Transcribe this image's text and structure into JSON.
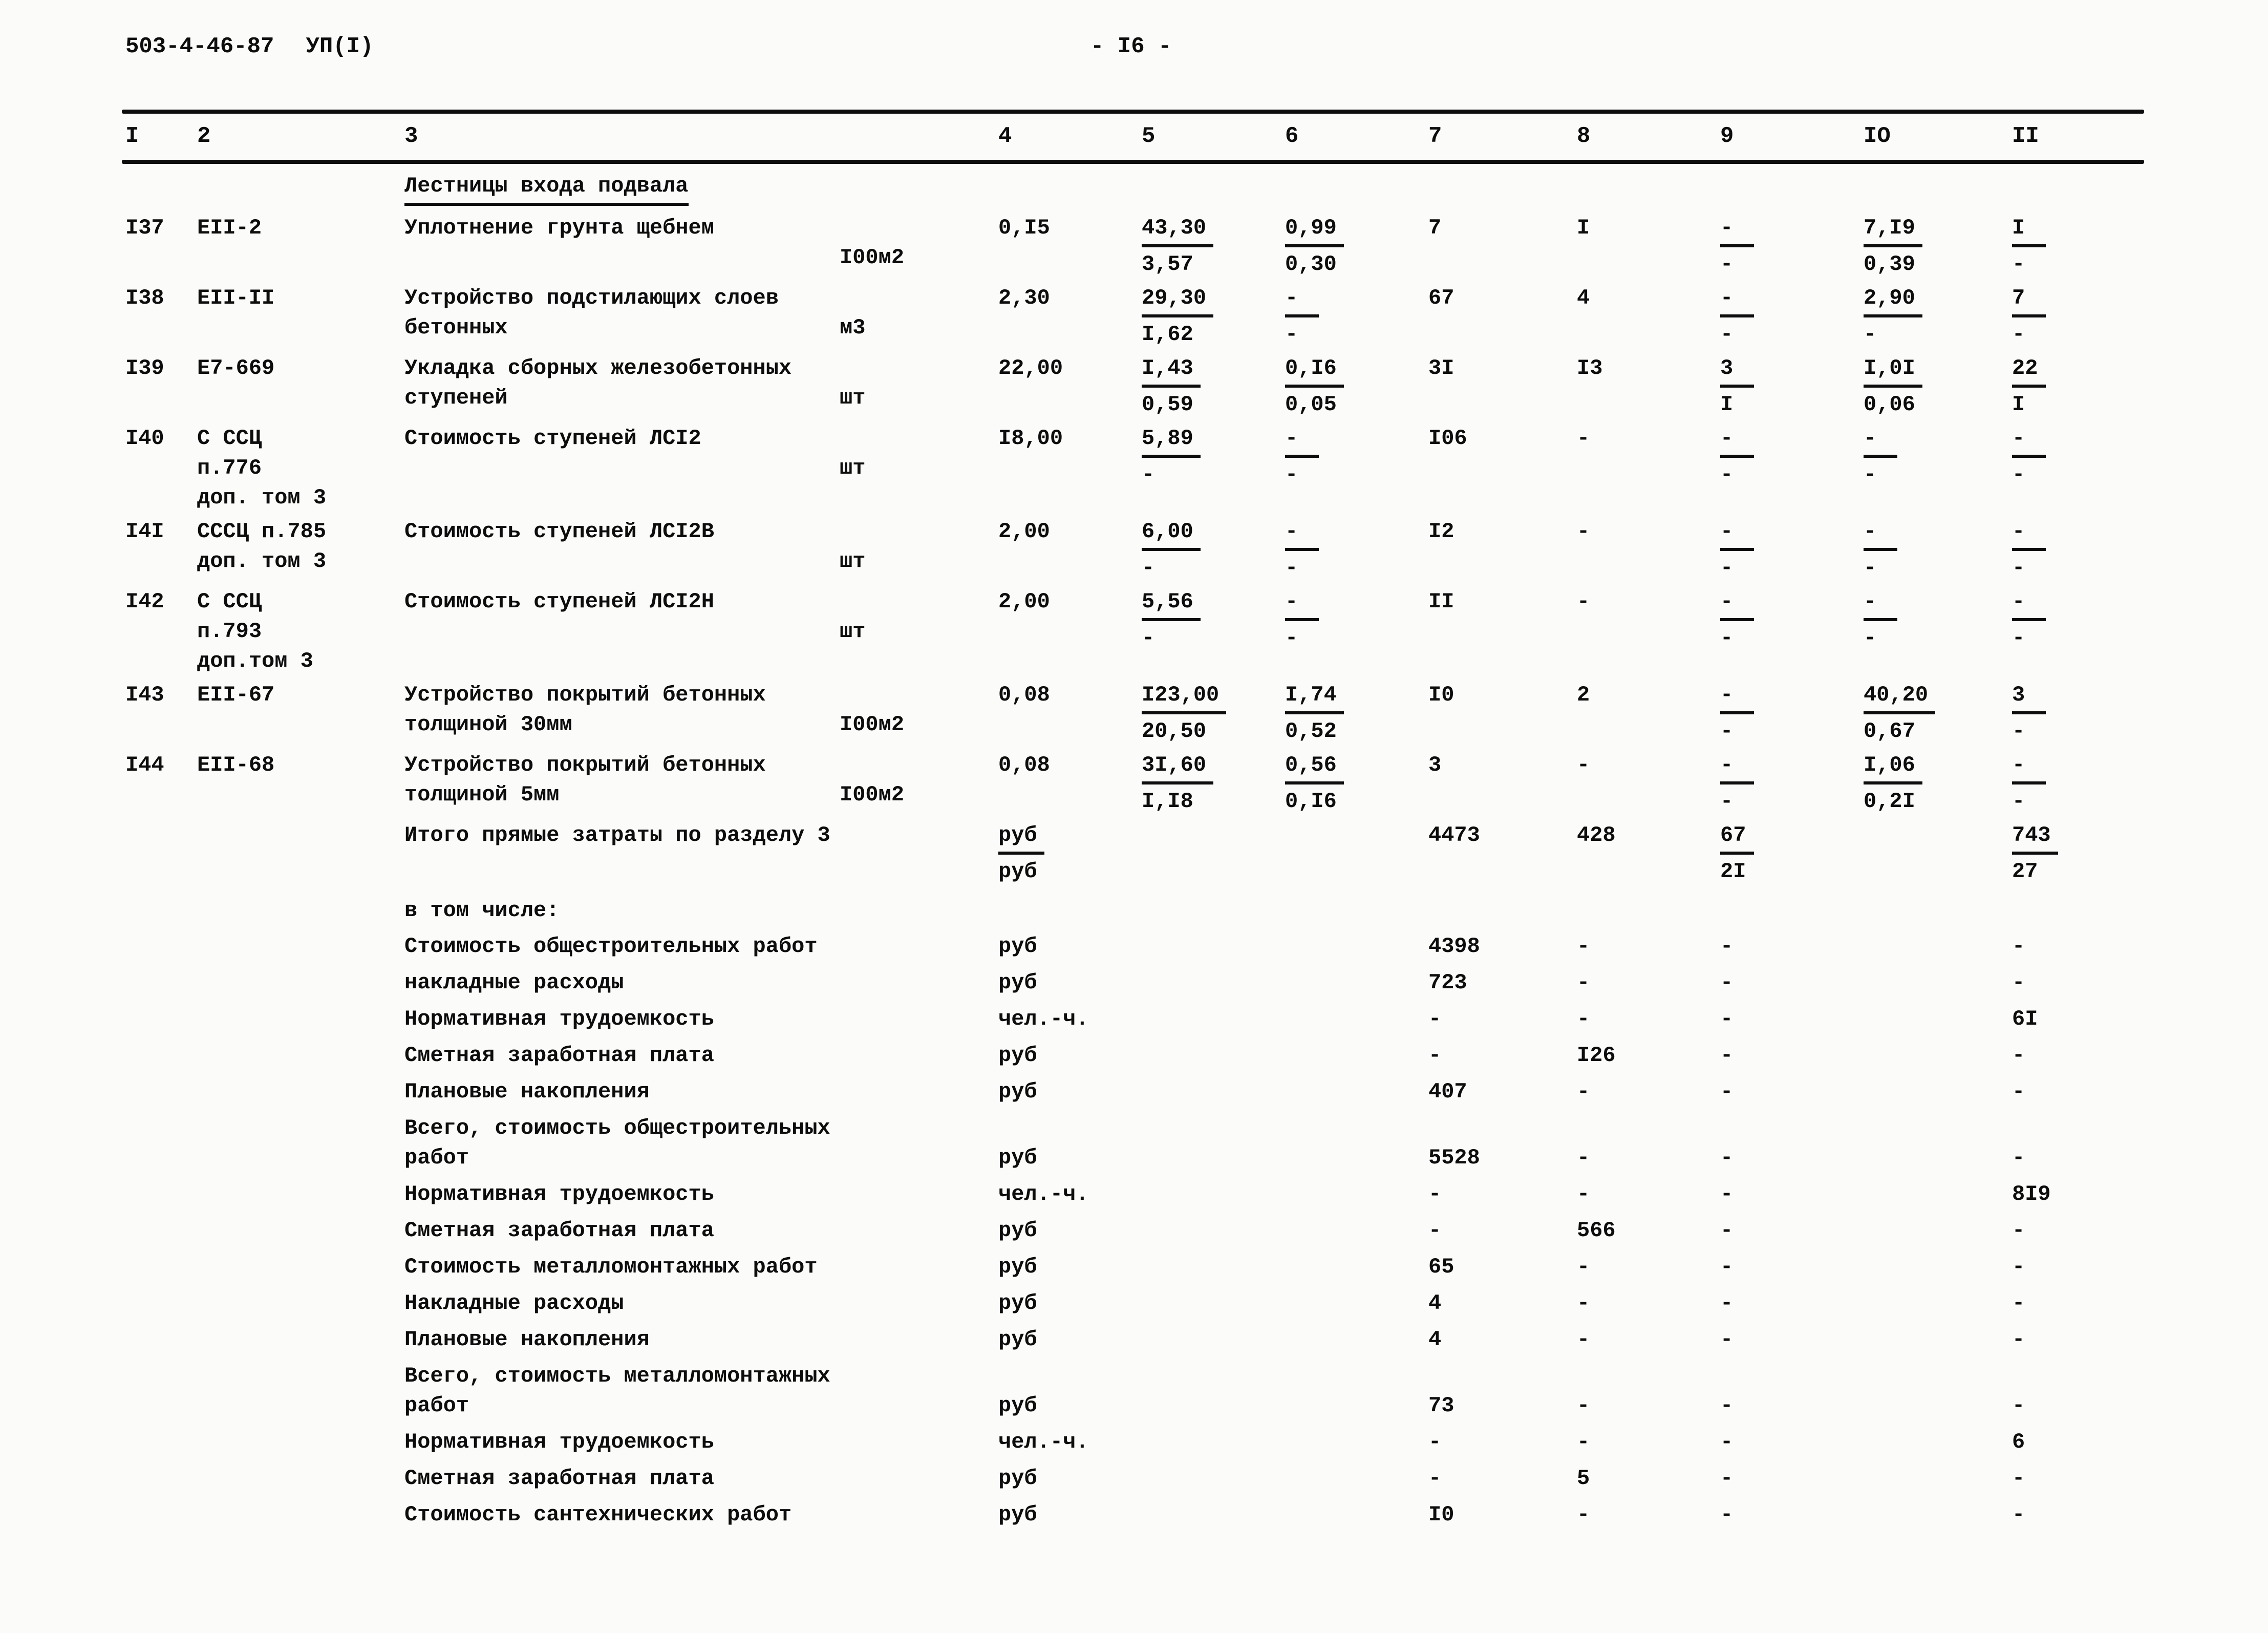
{
  "page": {
    "doc_code": "503-4-46-87",
    "doc_series": "УП(I)",
    "page_number": "- I6 -"
  },
  "table": {
    "column_numbers": [
      "I",
      "2",
      "3",
      "4",
      "5",
      "6",
      "7",
      "8",
      "9",
      "IO",
      "II"
    ],
    "rows": [
      {
        "type": "section",
        "title": "Лестницы входа подвала"
      },
      {
        "type": "item",
        "num": "I37",
        "code": [
          "ЕII-2"
        ],
        "desc": [
          "Уплотнение грунта щебнем"
        ],
        "unit": "I00м2",
        "c4": "0,I5",
        "c5": {
          "top": "43,30",
          "bot": "3,57"
        },
        "c6": {
          "top": "0,99",
          "bot": "0,30"
        },
        "c7": "7",
        "c8": "I",
        "c9": {
          "top": "-",
          "bot": "-"
        },
        "c10": {
          "top": "7,I9",
          "bot": "0,39"
        },
        "c11": {
          "top": "I",
          "bot": "-"
        }
      },
      {
        "type": "item",
        "num": "I38",
        "code": [
          "ЕII-II"
        ],
        "desc": [
          "Устройство подстилающих слоев",
          "бетонных"
        ],
        "unit": "м3",
        "c4": "2,30",
        "c5": {
          "top": "29,30",
          "bot": "I,62"
        },
        "c6": {
          "top": "-",
          "bot": "-"
        },
        "c7": "67",
        "c8": "4",
        "c9": {
          "top": "-",
          "bot": "-"
        },
        "c10": {
          "top": "2,90",
          "bot": "-"
        },
        "c11": {
          "top": "7",
          "bot": "-"
        }
      },
      {
        "type": "item",
        "num": "I39",
        "code": [
          "Е7-669"
        ],
        "desc": [
          "Укладка сборных железобетонных",
          "ступеней"
        ],
        "unit": "шт",
        "c4": "22,00",
        "c5": {
          "top": "I,43",
          "bot": "0,59"
        },
        "c6": {
          "top": "0,I6",
          "bot": "0,05"
        },
        "c7": "3I",
        "c8": "I3",
        "c9": {
          "top": "3",
          "bot": "I"
        },
        "c10": {
          "top": "I,0I",
          "bot": "0,06"
        },
        "c11": {
          "top": "22",
          "bot": "I"
        }
      },
      {
        "type": "item",
        "num": "I40",
        "code": [
          "С ССЦ",
          "п.776",
          "доп. том 3"
        ],
        "desc": [
          "Стоимость ступеней ЛСI2"
        ],
        "unit": "шт",
        "c4": "I8,00",
        "c5": {
          "top": "5,89",
          "bot": "-"
        },
        "c6": {
          "top": "-",
          "bot": "-"
        },
        "c7": "I06",
        "c8": "-",
        "c9": {
          "top": "-",
          "bot": "-"
        },
        "c10": {
          "top": "-",
          "bot": "-"
        },
        "c11": {
          "top": "-",
          "bot": "-"
        }
      },
      {
        "type": "item",
        "num": "I4I",
        "code": [
          "СССЦ п.785",
          "доп. том 3"
        ],
        "desc": [
          "Стоимость ступеней ЛСI2В"
        ],
        "unit": "шт",
        "c4": "2,00",
        "c5": {
          "top": "6,00",
          "bot": "-"
        },
        "c6": {
          "top": "-",
          "bot": "-"
        },
        "c7": "I2",
        "c8": "-",
        "c9": {
          "top": "-",
          "bot": "-"
        },
        "c10": {
          "top": "-",
          "bot": "-"
        },
        "c11": {
          "top": "-",
          "bot": "-"
        }
      },
      {
        "type": "item",
        "num": "I42",
        "code": [
          "С ССЦ",
          "п.793",
          "доп.том 3"
        ],
        "desc": [
          "Стоимость ступеней ЛСI2Н"
        ],
        "unit": "шт",
        "c4": "2,00",
        "c5": {
          "top": "5,56",
          "bot": "-"
        },
        "c6": {
          "top": "-",
          "bot": "-"
        },
        "c7": "II",
        "c8": "-",
        "c9": {
          "top": "-",
          "bot": "-"
        },
        "c10": {
          "top": "-",
          "bot": "-"
        },
        "c11": {
          "top": "-",
          "bot": "-"
        }
      },
      {
        "type": "item",
        "num": "I43",
        "code": [
          "ЕII-67"
        ],
        "desc": [
          "Устройство покрытий бетонных",
          "толщиной 30мм"
        ],
        "unit": "I00м2",
        "c4": "0,08",
        "c5": {
          "top": "I23,00",
          "bot": "20,50"
        },
        "c6": {
          "top": "I,74",
          "bot": "0,52"
        },
        "c7": "I0",
        "c8": "2",
        "c9": {
          "top": "-",
          "bot": "-"
        },
        "c10": {
          "top": "40,20",
          "bot": "0,67"
        },
        "c11": {
          "top": "3",
          "bot": "-"
        }
      },
      {
        "type": "item",
        "num": "I44",
        "code": [
          "ЕII-68"
        ],
        "desc": [
          "Устройство покрытий бетонных",
          "толщиной 5мм"
        ],
        "unit": "I00м2",
        "c4": "0,08",
        "c5": {
          "top": "3I,60",
          "bot": "I,I8"
        },
        "c6": {
          "top": "0,56",
          "bot": "0,I6"
        },
        "c7": "3",
        "c8": "-",
        "c9": {
          "top": "-",
          "bot": "-"
        },
        "c10": {
          "top": "I,06",
          "bot": "0,2I"
        },
        "c11": {
          "top": "-",
          "bot": "-"
        }
      },
      {
        "type": "total",
        "desc": [
          "Итого прямые затраты по разделу 3"
        ],
        "c4": {
          "top": "руб",
          "bot": "руб"
        },
        "c7": "4473",
        "c8": "428",
        "c9": {
          "top": "67",
          "bot": "2I"
        },
        "c11": {
          "top": "743",
          "bot": "27"
        }
      },
      {
        "type": "label",
        "desc": [
          "в том числе:"
        ]
      },
      {
        "type": "summary",
        "desc": [
          "Стоимость общестроительных работ"
        ],
        "c4": "руб",
        "c7": "4398",
        "c8": "-",
        "c9": "-",
        "c11": "-"
      },
      {
        "type": "summary",
        "desc": [
          "накладные расходы"
        ],
        "c4": "руб",
        "c7": "723",
        "c8": "-",
        "c9": "-",
        "c11": "-"
      },
      {
        "type": "summary",
        "desc": [
          "Нормативная трудоемкость"
        ],
        "c4": "чел.-ч.",
        "c7": "-",
        "c8": "-",
        "c9": "-",
        "c11": "6I"
      },
      {
        "type": "summary",
        "desc": [
          "Сметная заработная плата"
        ],
        "c4": "руб",
        "c7": "-",
        "c8": "I26",
        "c9": "-",
        "c11": "-"
      },
      {
        "type": "summary",
        "desc": [
          "Плановые накопления"
        ],
        "c4": "руб",
        "c7": "407",
        "c8": "-",
        "c9": "-",
        "c11": "-"
      },
      {
        "type": "summary",
        "desc": [
          "Всего, стоимость общестроительных",
          "работ"
        ],
        "c4": "руб",
        "c7": "5528",
        "c8": "-",
        "c9": "-",
        "c11": "-"
      },
      {
        "type": "summary",
        "desc": [
          "Нормативная трудоемкость"
        ],
        "c4": "чел.-ч.",
        "c7": "-",
        "c8": "-",
        "c9": "-",
        "c11": "8I9"
      },
      {
        "type": "summary",
        "desc": [
          "Сметная заработная плата"
        ],
        "c4": "руб",
        "c7": "-",
        "c8": "566",
        "c9": "-",
        "c11": "-"
      },
      {
        "type": "summary",
        "desc": [
          "Стоимость металломонтажных работ"
        ],
        "c4": "руб",
        "c7": "65",
        "c8": "-",
        "c9": "-",
        "c11": "-"
      },
      {
        "type": "summary",
        "desc": [
          "Накладные расходы"
        ],
        "c4": "руб",
        "c7": "4",
        "c8": "-",
        "c9": "-",
        "c11": "-"
      },
      {
        "type": "summary",
        "desc": [
          "Плановые накопления"
        ],
        "c4": "руб",
        "c7": "4",
        "c8": "-",
        "c9": "-",
        "c11": "-"
      },
      {
        "type": "summary",
        "desc": [
          "Всего, стоимость металломонтажных",
          "работ"
        ],
        "c4": "руб",
        "c7": "73",
        "c8": "-",
        "c9": "-",
        "c11": "-"
      },
      {
        "type": "summary",
        "desc": [
          "Нормативная трудоемкость"
        ],
        "c4": "чел.-ч.",
        "c7": "-",
        "c8": "-",
        "c9": "-",
        "c11": "6"
      },
      {
        "type": "summary",
        "desc": [
          "Сметная заработная плата"
        ],
        "c4": "руб",
        "c7": "-",
        "c8": "5",
        "c9": "-",
        "c11": "-"
      },
      {
        "type": "summary",
        "desc": [
          "Стоимость сантехнических работ"
        ],
        "c4": "руб",
        "c7": "I0",
        "c8": "-",
        "c9": "-",
        "c11": "-"
      }
    ]
  }
}
